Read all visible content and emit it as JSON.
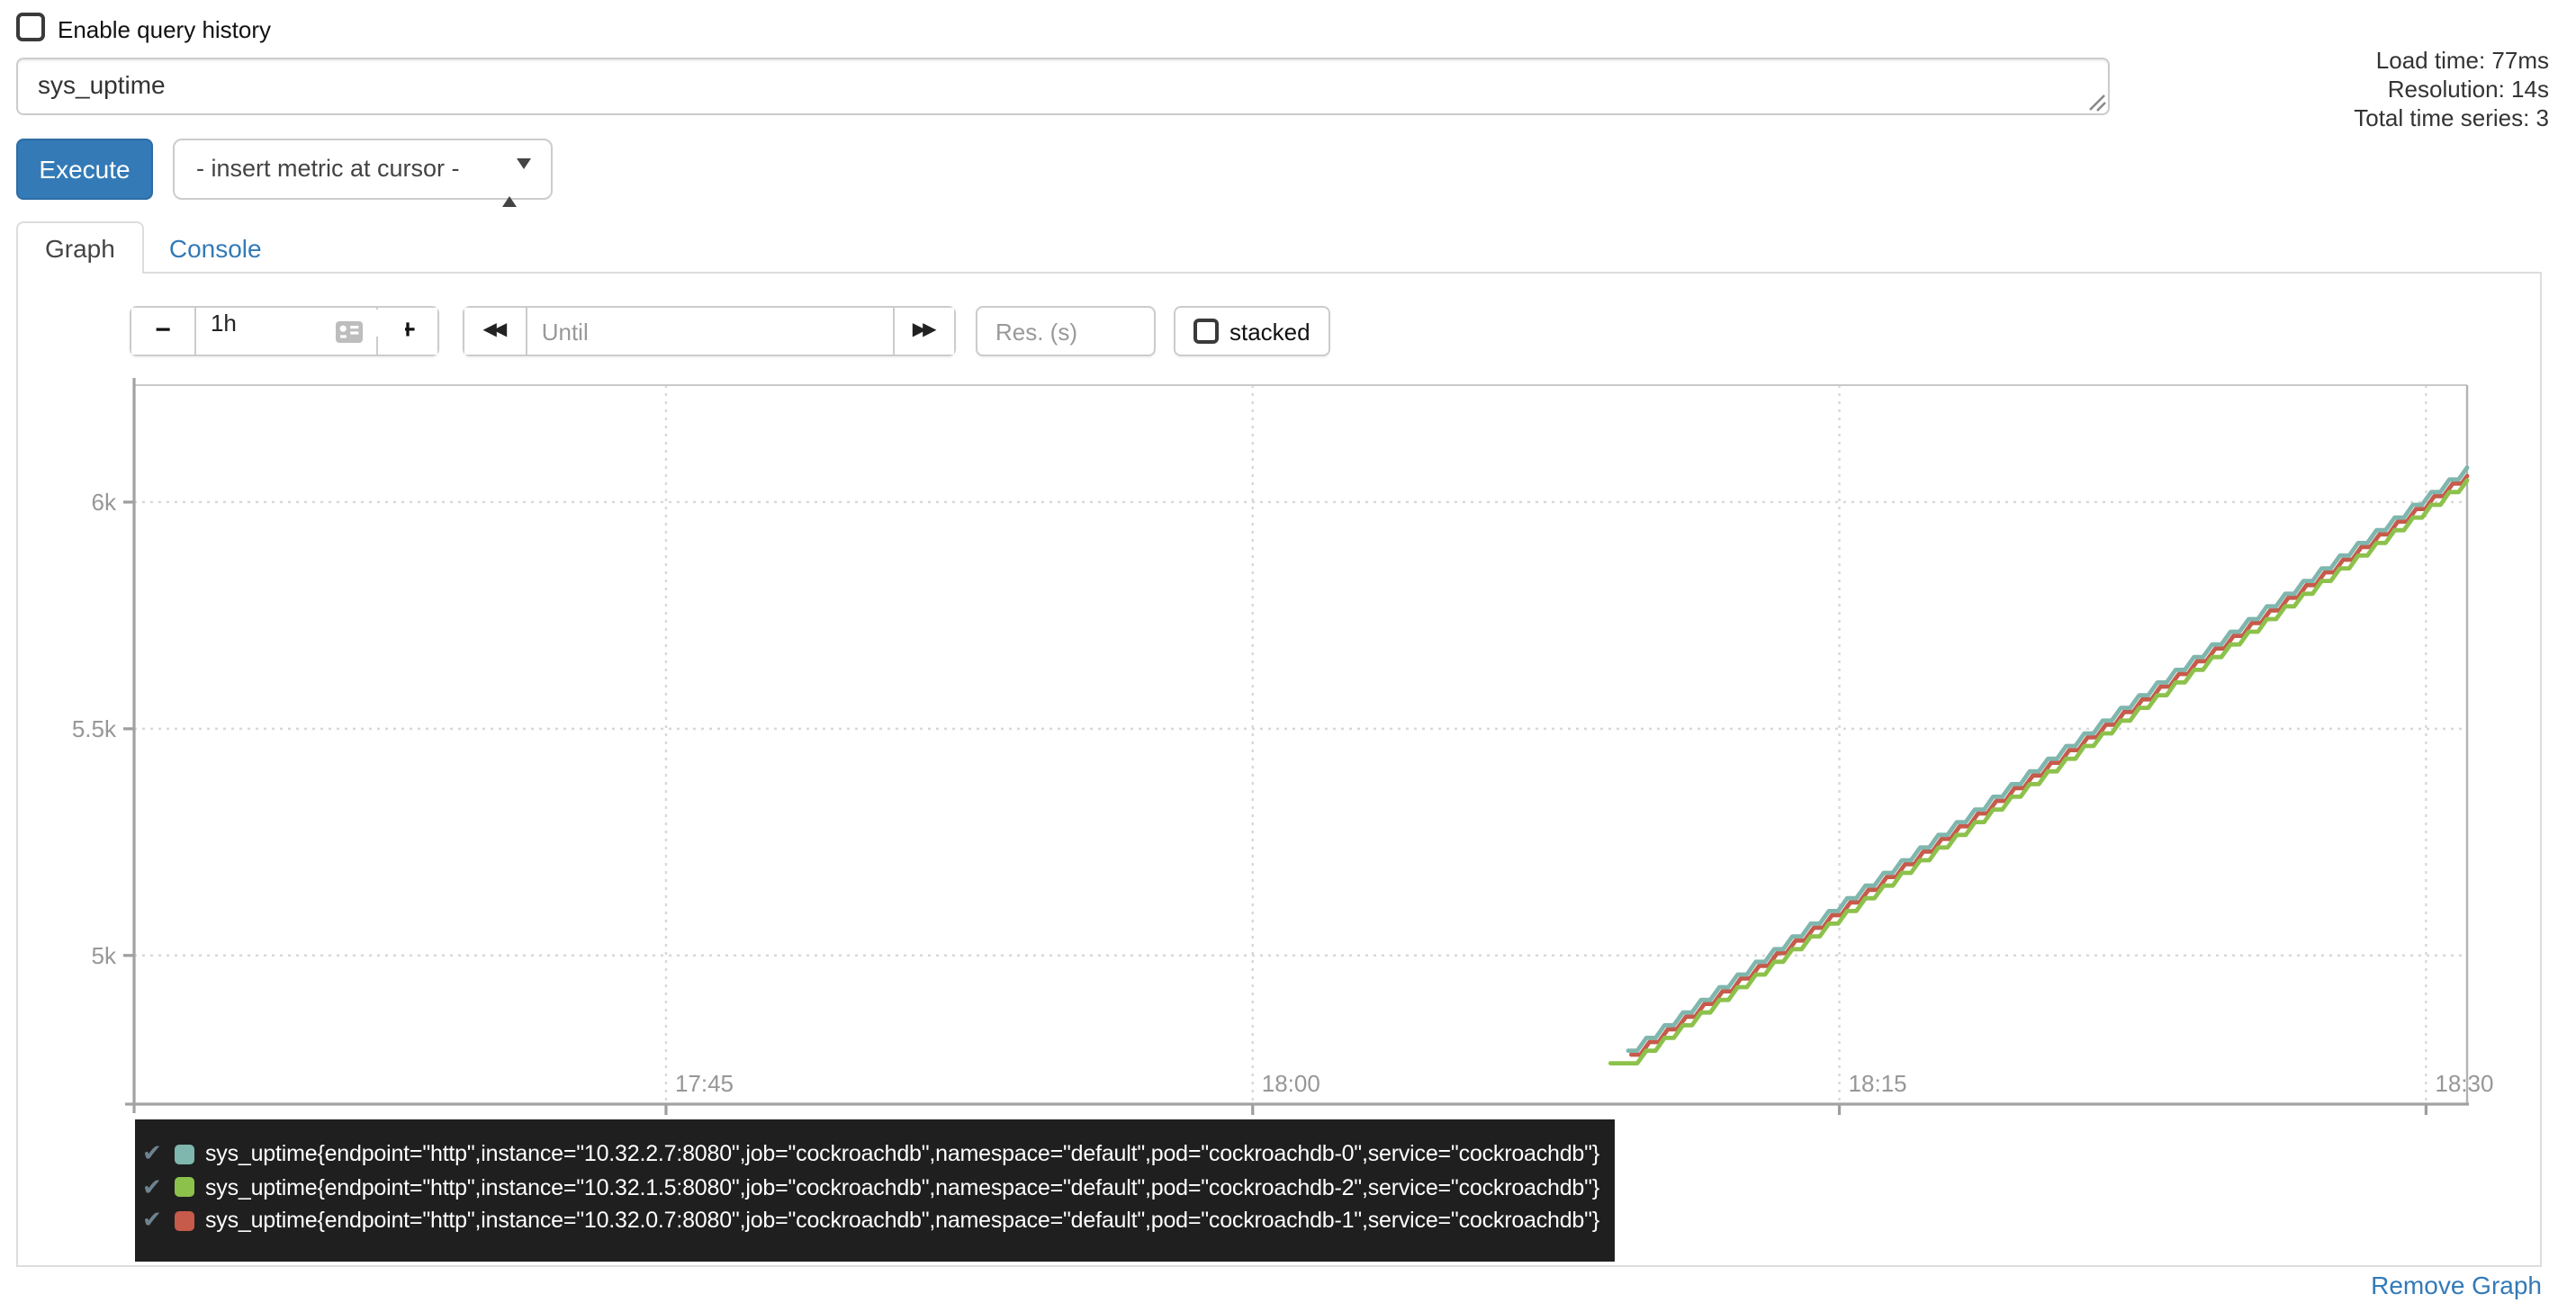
{
  "query_section": {
    "enable_query_history": {
      "label": "Enable query history",
      "checked": false
    },
    "expression_input": {
      "value": "sys_uptime"
    },
    "execute_button": "Execute",
    "metric_select": {
      "selected": "- insert metric at cursor -"
    },
    "stats": {
      "load_time": "Load time: 77ms",
      "resolution": "Resolution: 14s",
      "total_time_series": "Total time series: 3"
    }
  },
  "tabs": {
    "graph": "Graph",
    "console": "Console"
  },
  "graph_controls": {
    "decrease_range": "−",
    "range_value": "1h",
    "increase_range": "+",
    "rewind_glyph": "◀◀",
    "until_placeholder": "Until",
    "forward_glyph": "▶▶",
    "res_placeholder": "Res. (s)",
    "stacked": {
      "label": "stacked",
      "checked": false
    }
  },
  "chart_data": {
    "type": "line",
    "line_style": "staircase (uptime counter increasing ~1 unit/second, stepped by scrape interval)",
    "grid": {
      "style": "dotted",
      "color": "#d8d8d8"
    },
    "legend_position": "bottom-left",
    "x_axis": {
      "base_time": "17:30",
      "range_minutes": [
        1.4,
        61.05
      ],
      "ticks": [
        {
          "label": "17:45",
          "minute": 15
        },
        {
          "label": "18:00",
          "minute": 30
        },
        {
          "label": "18:15",
          "minute": 45
        },
        {
          "label": "18:30",
          "minute": 60
        }
      ]
    },
    "y_axis": {
      "range": [
        4672,
        6258
      ],
      "ticks": [
        {
          "label": "6k",
          "value": 6000
        },
        {
          "label": "5.5k",
          "value": 5500
        },
        {
          "label": "5k",
          "value": 5000
        }
      ]
    },
    "step": {
      "flat_seconds": 14,
      "rise_seconds": 14,
      "rise_amount": 28
    },
    "series": [
      {
        "name": "sys_uptime{endpoint=\"http\",instance=\"10.32.2.7:8080\",job=\"cockroachdb\",namespace=\"default\",pod=\"cockroachdb-0\",service=\"cockroachdb\"}",
        "color": "#7fb6ad",
        "anchors_min_value": [
          [
            39.6,
            4790
          ],
          [
            61.05,
            6077
          ]
        ],
        "sampled_points": [
          [
            "18:10",
            4814
          ],
          [
            "18:15",
            5114
          ],
          [
            "18:20",
            5414
          ],
          [
            "18:25",
            5714
          ],
          [
            "18:30",
            6014
          ]
        ]
      },
      {
        "name": "sys_uptime{endpoint=\"http\",instance=\"10.32.1.5:8080\",job=\"cockroachdb\",namespace=\"default\",pod=\"cockroachdb-2\",service=\"cockroachdb\"}",
        "color": "#8cc14b",
        "anchors_min_value": [
          [
            39.15,
            4762
          ],
          [
            39.6,
            4762
          ],
          [
            61.05,
            6049
          ]
        ],
        "sampled_points": [
          [
            "18:10",
            4786
          ],
          [
            "18:15",
            5086
          ],
          [
            "18:20",
            5386
          ],
          [
            "18:25",
            5686
          ],
          [
            "18:30",
            5986
          ]
        ]
      },
      {
        "name": "sys_uptime{endpoint=\"http\",instance=\"10.32.0.7:8080\",job=\"cockroachdb\",namespace=\"default\",pod=\"cockroachdb-1\",service=\"cockroachdb\"}",
        "color": "#c65a4b",
        "anchors_min_value": [
          [
            39.68,
            4781
          ],
          [
            61.05,
            6063
          ]
        ],
        "sampled_points": [
          [
            "18:10",
            4800
          ],
          [
            "18:15",
            5100
          ],
          [
            "18:20",
            5400
          ],
          [
            "18:25",
            5700
          ],
          [
            "18:30",
            6000
          ]
        ]
      }
    ]
  },
  "legend": {
    "items": [
      {
        "checked": true,
        "check_glyph": "✔",
        "color": "#7fb6ad",
        "label": "sys_uptime{endpoint=\"http\",instance=\"10.32.2.7:8080\",job=\"cockroachdb\",namespace=\"default\",pod=\"cockroachdb-0\",service=\"cockroachdb\"}"
      },
      {
        "checked": true,
        "check_glyph": "✔",
        "color": "#8cc14b",
        "label": "sys_uptime{endpoint=\"http\",instance=\"10.32.1.5:8080\",job=\"cockroachdb\",namespace=\"default\",pod=\"cockroachdb-2\",service=\"cockroachdb\"}"
      },
      {
        "checked": true,
        "check_glyph": "✔",
        "color": "#c65a4b",
        "label": "sys_uptime{endpoint=\"http\",instance=\"10.32.0.7:8080\",job=\"cockroachdb\",namespace=\"default\",pod=\"cockroachdb-1\",service=\"cockroachdb\"}"
      }
    ]
  },
  "footer": {
    "remove_graph": "Remove Graph"
  }
}
